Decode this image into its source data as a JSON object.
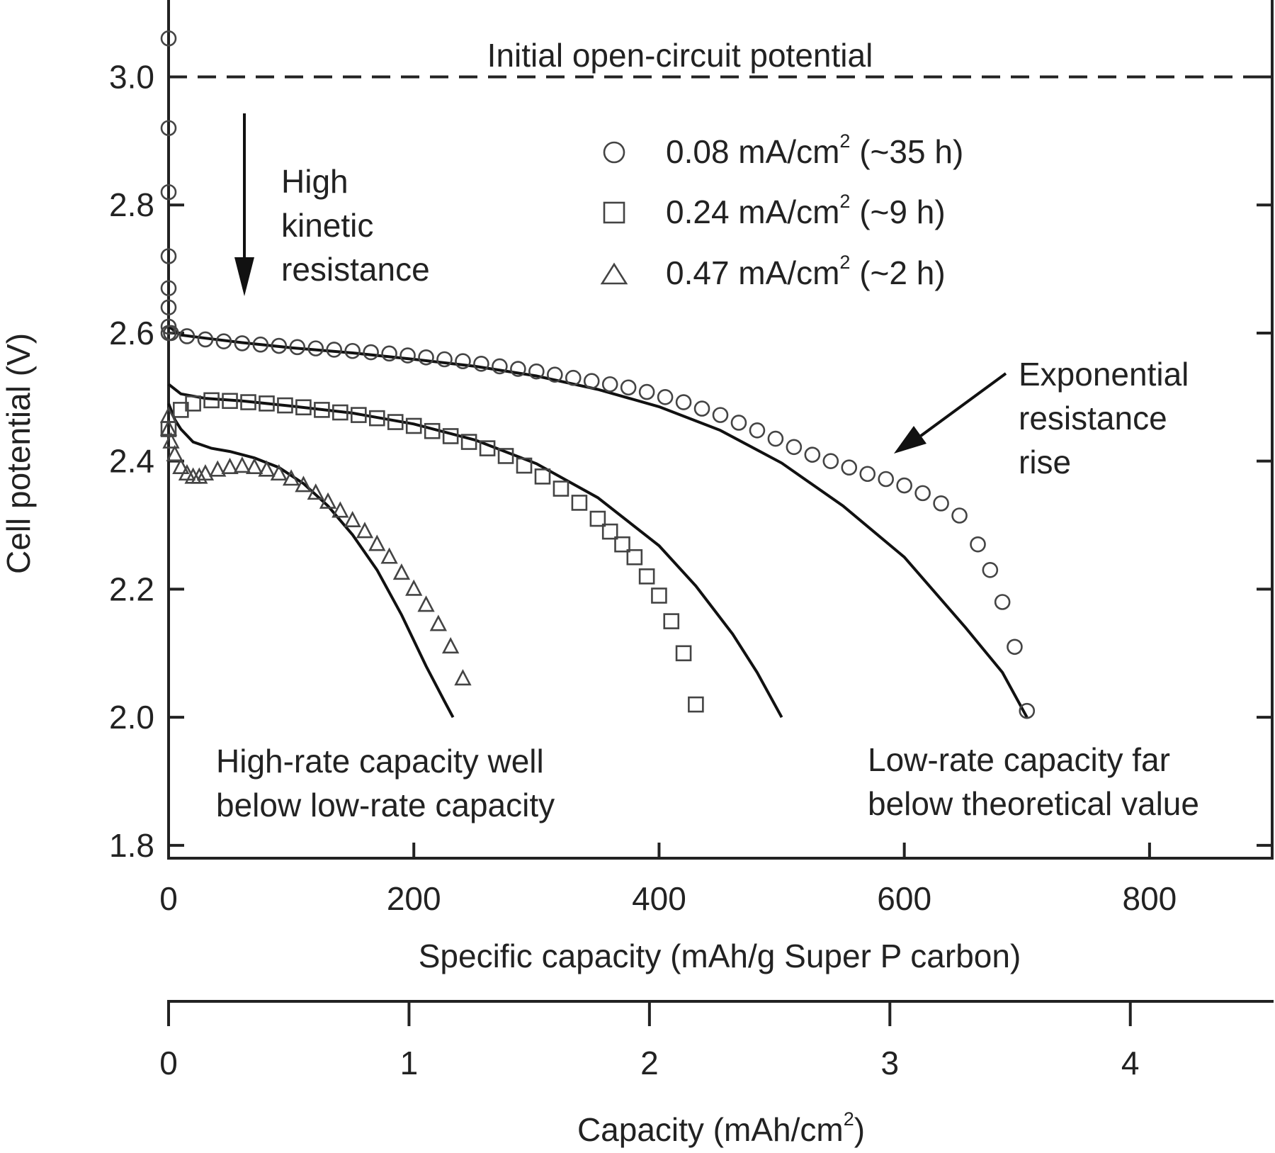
{
  "chart_data": {
    "type": "scatter",
    "xlabel": "Specific capacity (mAh/g Super P carbon)",
    "xlabel2": "Capacity (mAh/cm",
    "xlabel2_sup": "2",
    "xlabel2_end": ")",
    "ylabel": "Cell potential (V)",
    "xlim": [
      0,
      900
    ],
    "ylim": [
      1.78,
      3.12
    ],
    "x2lim": [
      0,
      4.59
    ],
    "xticks": [
      0,
      200,
      400,
      600,
      800
    ],
    "xtick_labels": [
      "0",
      "200",
      "400",
      "600",
      "800"
    ],
    "yticks": [
      1.8,
      2.0,
      2.2,
      2.4,
      2.6,
      2.8,
      3.0
    ],
    "ytick_labels": [
      "1.8",
      "2.0",
      "2.2",
      "2.4",
      "2.6",
      "2.8",
      "3.0"
    ],
    "x2ticks": [
      0,
      1,
      2,
      3,
      4
    ],
    "x2tick_labels": [
      "0",
      "1",
      "2",
      "3",
      "4"
    ],
    "grid": false,
    "legend_position": "top-center",
    "series": [
      {
        "name": "0.08 mA/cm",
        "name_sup": "2",
        "name_suffix": " (~35 h)",
        "marker": "circle",
        "x": [
          0,
          0,
          0,
          0,
          0,
          0,
          0,
          0,
          2,
          15,
          30,
          45,
          60,
          75,
          90,
          105,
          120,
          135,
          150,
          165,
          180,
          195,
          210,
          225,
          240,
          255,
          270,
          285,
          300,
          315,
          330,
          345,
          360,
          375,
          390,
          405,
          420,
          435,
          450,
          465,
          480,
          495,
          510,
          525,
          540,
          555,
          570,
          585,
          600,
          615,
          630,
          645,
          660,
          670,
          680,
          690,
          700
        ],
        "y": [
          3.06,
          2.92,
          2.82,
          2.72,
          2.67,
          2.64,
          2.61,
          2.6,
          2.6,
          2.595,
          2.59,
          2.587,
          2.584,
          2.582,
          2.58,
          2.578,
          2.576,
          2.574,
          2.572,
          2.57,
          2.568,
          2.565,
          2.562,
          2.559,
          2.556,
          2.552,
          2.548,
          2.544,
          2.54,
          2.535,
          2.53,
          2.525,
          2.52,
          2.515,
          2.508,
          2.5,
          2.492,
          2.482,
          2.472,
          2.46,
          2.448,
          2.435,
          2.422,
          2.41,
          2.4,
          2.39,
          2.38,
          2.372,
          2.362,
          2.35,
          2.334,
          2.315,
          2.27,
          2.23,
          2.18,
          2.11,
          2.01
        ]
      },
      {
        "name": "0.24 mA/cm",
        "name_sup": "2",
        "name_suffix": " (~9 h)",
        "marker": "square",
        "x": [
          0,
          10,
          20,
          35,
          50,
          65,
          80,
          95,
          110,
          125,
          140,
          155,
          170,
          185,
          200,
          215,
          230,
          245,
          260,
          275,
          290,
          305,
          320,
          335,
          350,
          360,
          370,
          380,
          390,
          400,
          410,
          420,
          430
        ],
        "y": [
          2.45,
          2.48,
          2.49,
          2.495,
          2.494,
          2.492,
          2.49,
          2.487,
          2.484,
          2.48,
          2.476,
          2.472,
          2.467,
          2.461,
          2.455,
          2.447,
          2.439,
          2.43,
          2.42,
          2.408,
          2.393,
          2.376,
          2.357,
          2.335,
          2.31,
          2.29,
          2.27,
          2.25,
          2.22,
          2.19,
          2.15,
          2.1,
          2.02
        ]
      },
      {
        "name": "0.47 mA/cm",
        "name_sup": "2",
        "name_suffix": " (~2 h)",
        "marker": "triangle",
        "x": [
          0,
          0,
          2,
          5,
          10,
          15,
          20,
          25,
          30,
          40,
          50,
          60,
          70,
          80,
          90,
          100,
          110,
          120,
          130,
          140,
          150,
          160,
          170,
          180,
          190,
          200,
          210,
          220,
          230,
          240
        ],
        "y": [
          2.47,
          2.45,
          2.43,
          2.41,
          2.39,
          2.38,
          2.375,
          2.375,
          2.38,
          2.386,
          2.39,
          2.392,
          2.39,
          2.386,
          2.38,
          2.372,
          2.362,
          2.35,
          2.336,
          2.322,
          2.307,
          2.29,
          2.27,
          2.25,
          2.225,
          2.2,
          2.175,
          2.145,
          2.11,
          2.06
        ]
      }
    ],
    "model_curves": [
      {
        "x": [
          0,
          10,
          30,
          60,
          100,
          150,
          200,
          250,
          300,
          350,
          400,
          450,
          500,
          550,
          600,
          650,
          680,
          700
        ],
        "y": [
          2.61,
          2.597,
          2.592,
          2.585,
          2.577,
          2.569,
          2.559,
          2.548,
          2.533,
          2.512,
          2.485,
          2.448,
          2.397,
          2.33,
          2.25,
          2.14,
          2.07,
          2.0
        ]
      },
      {
        "x": [
          0,
          10,
          30,
          60,
          100,
          150,
          200,
          250,
          300,
          350,
          400,
          430,
          460,
          480,
          500
        ],
        "y": [
          2.52,
          2.505,
          2.498,
          2.494,
          2.486,
          2.475,
          2.458,
          2.433,
          2.396,
          2.343,
          2.268,
          2.205,
          2.13,
          2.07,
          2.0
        ]
      },
      {
        "x": [
          0,
          5,
          10,
          20,
          35,
          50,
          70,
          90,
          110,
          130,
          150,
          170,
          190,
          210,
          225,
          232
        ],
        "y": [
          2.49,
          2.465,
          2.45,
          2.43,
          2.42,
          2.415,
          2.405,
          2.39,
          2.365,
          2.33,
          2.285,
          2.23,
          2.16,
          2.08,
          2.025,
          2.0
        ]
      }
    ],
    "open_circuit_potential": 3.0,
    "annotations": {
      "ocv": "Initial open-circuit potential",
      "kinetic": [
        "High",
        "kinetic",
        "resistance"
      ],
      "exponential": [
        "Exponential",
        "resistance",
        "rise"
      ],
      "high_rate": [
        "High-rate capacity well",
        "below low-rate capacity"
      ],
      "low_rate": [
        "Low-rate capacity far",
        "below theoretical value"
      ]
    }
  }
}
